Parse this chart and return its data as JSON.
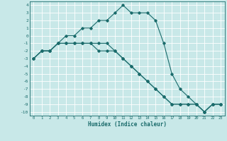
{
  "xlabel": "Humidex (Indice chaleur)",
  "ylabel": "",
  "background_color": "#c8e8e8",
  "grid_color": "#ffffff",
  "line_color": "#1a6b6b",
  "xlim": [
    -0.5,
    23.5
  ],
  "ylim": [
    -10.5,
    4.5
  ],
  "xticks": [
    0,
    1,
    2,
    3,
    4,
    5,
    6,
    7,
    8,
    9,
    10,
    11,
    12,
    13,
    14,
    15,
    16,
    17,
    18,
    19,
    20,
    21,
    22,
    23
  ],
  "yticks": [
    4,
    3,
    2,
    1,
    0,
    -1,
    -2,
    -3,
    -4,
    -5,
    -6,
    -7,
    -8,
    -9,
    -10
  ],
  "series": [
    {
      "x": [
        0,
        1,
        2,
        3,
        4,
        5,
        6,
        7,
        8,
        9,
        10,
        11,
        12,
        13,
        14,
        15,
        16,
        17,
        18,
        19,
        20,
        21,
        22,
        23
      ],
      "y": [
        -3,
        -2,
        -2,
        -1,
        0,
        0,
        1,
        1,
        2,
        2,
        3,
        4,
        3,
        3,
        3,
        2,
        -1,
        -5,
        -7,
        -8,
        -9,
        -10,
        -9,
        -9
      ]
    },
    {
      "x": [
        0,
        1,
        2,
        3,
        4,
        5,
        6,
        7,
        8,
        9,
        10,
        11,
        12,
        13,
        14,
        15,
        16,
        17,
        18,
        19,
        20,
        21,
        22,
        23
      ],
      "y": [
        -3,
        -2,
        -2,
        -1,
        -1,
        -1,
        -1,
        -1,
        -1,
        -1,
        -2,
        -3,
        -4,
        -5,
        -6,
        -7,
        -8,
        -9,
        -9,
        -9,
        -9,
        -10,
        -9,
        -9
      ]
    },
    {
      "x": [
        0,
        1,
        2,
        3,
        4,
        5,
        6,
        7,
        8,
        9,
        10,
        11,
        12,
        13,
        14,
        15,
        16,
        17,
        18,
        19,
        20,
        21,
        22,
        23
      ],
      "y": [
        -3,
        -2,
        -2,
        -1,
        -1,
        -1,
        -1,
        -1,
        -2,
        -2,
        -2,
        -3,
        -4,
        -5,
        -6,
        -7,
        -8,
        -9,
        -9,
        -9,
        -9,
        -10,
        -9,
        -9
      ]
    }
  ]
}
